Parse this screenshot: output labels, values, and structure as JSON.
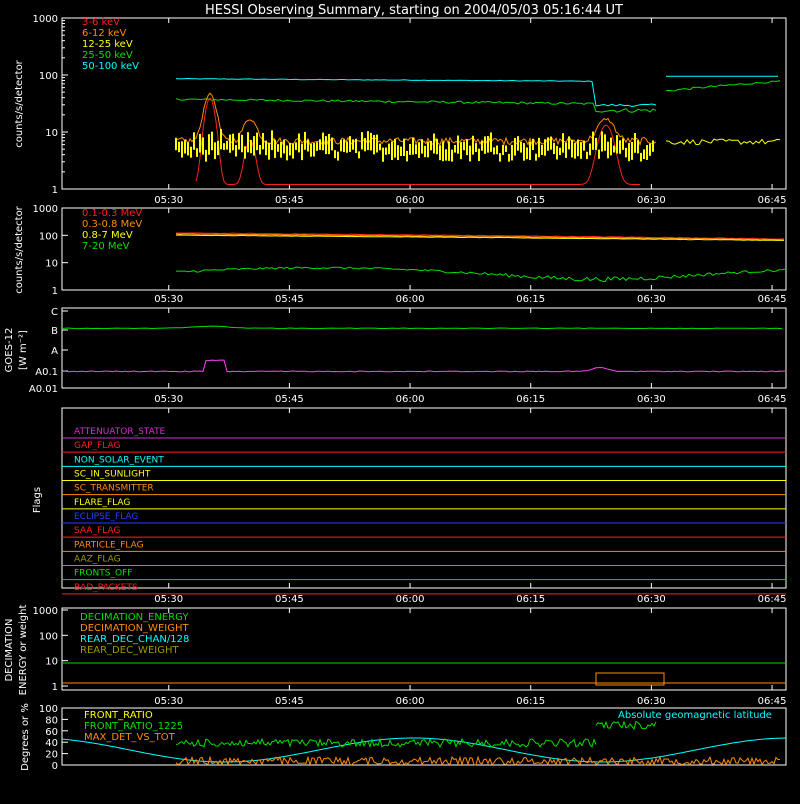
{
  "chart_data": {
    "type": "line",
    "title": "HESSI Observing Summary, starting on 2004/05/03 05:16:44 UT",
    "x_tick_labels": [
      "05:30",
      "05:45",
      "06:00",
      "06:15",
      "06:30",
      "06:45"
    ],
    "panels": [
      {
        "id": "countrate",
        "ylabel": "counts/s/detector",
        "yscale": "log",
        "ylim": [
          1,
          1000
        ],
        "ytick_labels": [
          "1",
          "10",
          "100",
          "1000"
        ],
        "series": [
          {
            "name": "3-6 keV",
            "color": "#ff2020"
          },
          {
            "name": "6-12 keV",
            "color": "#ff8c00"
          },
          {
            "name": "12-25 keV",
            "color": "#ffff00"
          },
          {
            "name": "25-50 keV",
            "color": "#00e000"
          },
          {
            "name": "50-100 keV",
            "color": "#00ffff"
          }
        ]
      },
      {
        "id": "high_energy",
        "ylabel": "counts/s/detector",
        "yscale": "log",
        "ylim": [
          1,
          1000
        ],
        "ytick_labels": [
          "1",
          "10",
          "100",
          "1000"
        ],
        "series": [
          {
            "name": "0.1-0.3 MeV",
            "color": "#ff2020"
          },
          {
            "name": "0.3-0.8 MeV",
            "color": "#ff8c00"
          },
          {
            "name": "0.8-7 MeV",
            "color": "#ffff00"
          },
          {
            "name": "7-20 MeV",
            "color": "#00e000"
          }
        ]
      },
      {
        "id": "goes",
        "ylabel": "GOES-12",
        "ylabel2": "[W m⁻²]",
        "ytick_labels": [
          "C",
          "B",
          "A",
          "A0.1",
          "A0.01"
        ],
        "series_colors": [
          "#00e000",
          "#ff40ff"
        ]
      },
      {
        "id": "flags",
        "ylabel": "Flags",
        "flags": [
          {
            "name": "ATTENUATOR_STATE",
            "color": "#cc33cc"
          },
          {
            "name": "GAP_FLAG",
            "color": "#ff2020"
          },
          {
            "name": "NON_SOLAR_EVENT",
            "color": "#00ffff"
          },
          {
            "name": "SC_IN_SUNLIGHT",
            "color": "#ffff00"
          },
          {
            "name": "SC_TRANSMITTER",
            "color": "#ff8c00"
          },
          {
            "name": "FLARE_FLAG",
            "color": "#ffff00"
          },
          {
            "name": "ECLIPSE_FLAG",
            "color": "#2040ff"
          },
          {
            "name": "SAA_FLAG",
            "color": "#ff2020"
          },
          {
            "name": "PARTICLE_FLAG",
            "color": "#ff8c00"
          },
          {
            "name": "AAZ_FLAG",
            "color": "#999900"
          },
          {
            "name": "FRONTS_OFF",
            "color": "#00e000"
          },
          {
            "name": "BAD_PACKETS",
            "color": "#ff2020"
          }
        ]
      },
      {
        "id": "decimation",
        "ylabel": "DECIMATION",
        "ylabel2": "ENERGY or weight",
        "ytick_labels": [
          "1",
          "10",
          "100",
          "1000"
        ],
        "series": [
          {
            "name": "DECIMATION_ENERGY",
            "color": "#00e000"
          },
          {
            "name": "DECIMATION_WEIGHT",
            "color": "#ff8c00"
          },
          {
            "name": "REAR_DEC_CHAN/128",
            "color": "#00ffff"
          },
          {
            "name": "REAR_DEC_WEIGHT",
            "color": "#999900"
          }
        ]
      },
      {
        "id": "ratios",
        "ylabel": "Degrees or %",
        "ytick_labels": [
          "0",
          "20",
          "40",
          "60",
          "80",
          "100"
        ],
        "series": [
          {
            "name": "FRONT_RATIO",
            "color": "#ffff00"
          },
          {
            "name": "FRONT_RATIO_1225",
            "color": "#00e000"
          },
          {
            "name": "MAX_DET_VS_TOT",
            "color": "#ff8c00"
          }
        ],
        "annotation": "Absolute geomagnetic latitude",
        "annotation_color": "#00ffff"
      }
    ]
  }
}
